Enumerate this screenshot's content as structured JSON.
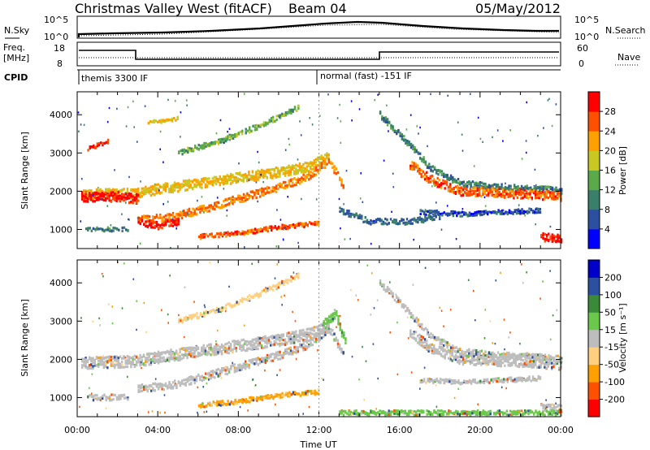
{
  "header": {
    "title": "Christmas Valley West (fitACF)",
    "beam": "Beam 04",
    "date": "05/May/2012"
  },
  "panels": {
    "nsky_label": "N.Sky",
    "nsky_ticks": [
      "10^5",
      "10^0"
    ],
    "nsearch_label": "N.Search",
    "freq_label_1": "Freq.",
    "freq_label_2": "[MHz]",
    "freq_ticks": [
      "18",
      "8"
    ],
    "nave_ticks": [
      "60",
      "0"
    ],
    "nave_label": "Nave",
    "cpid_label": "CPID",
    "cpid_modes": [
      "themis 3300 IF",
      "normal (fast) -151 IF"
    ]
  },
  "colors": {
    "power": [
      "#0000ff",
      "#2d4fa0",
      "#3a7f6a",
      "#5aaa4a",
      "#c8c820",
      "#ffa000",
      "#ff5000",
      "#ff0000"
    ],
    "velocity": [
      "#ff0000",
      "#ff5000",
      "#ffa000",
      "#ffd080",
      "#bdbdbd",
      "#6ac84a",
      "#3a8a3a",
      "#2d4fa0",
      "#0000c8"
    ],
    "ground_scatter": "#bdbdbd"
  },
  "chart_data": [
    {
      "type": "heatmap",
      "name": "power",
      "ylabel": "Slant Range [km]",
      "yticks": [
        "1000",
        "2000",
        "3000",
        "4000"
      ],
      "ylim": [
        500,
        4600
      ],
      "xlim_hours": [
        0,
        24
      ],
      "colorbar_label": "Power [dB]",
      "colorbar_ticks": [
        "4",
        "8",
        "12",
        "16",
        "20",
        "24",
        "28"
      ],
      "colorbar_range": [
        0,
        32
      ],
      "bands": [
        {
          "pts": [
            [
              0.2,
              1900
            ],
            [
              3.0,
              1950
            ],
            [
              4.0,
              2050
            ],
            [
              6.0,
              2200
            ],
            [
              8.0,
              2350
            ],
            [
              10.0,
              2500
            ],
            [
              11.5,
              2650
            ],
            [
              12.5,
              2900
            ]
          ],
          "width": 260,
          "power": 20
        },
        {
          "pts": [
            [
              0.2,
              1850
            ],
            [
              2.0,
              1850
            ],
            [
              3.0,
              1800
            ]
          ],
          "width": 250,
          "power": 30
        },
        {
          "pts": [
            [
              3.0,
              1250
            ],
            [
              4.5,
              1300
            ],
            [
              6.0,
              1500
            ],
            [
              8.0,
              1800
            ],
            [
              10.0,
              2100
            ],
            [
              11.5,
              2400
            ],
            [
              12.5,
              2800
            ],
            [
              13.2,
              2100
            ]
          ],
          "width": 200,
          "power": 24
        },
        {
          "pts": [
            [
              3.0,
              1200
            ],
            [
              4.0,
              1100
            ],
            [
              5.0,
              1200
            ]
          ],
          "width": 180,
          "power": 30
        },
        {
          "pts": [
            [
              5.0,
              3000
            ],
            [
              7.0,
              3300
            ],
            [
              9.0,
              3700
            ],
            [
              11.0,
              4200
            ]
          ],
          "width": 130,
          "power": 14
        },
        {
          "pts": [
            [
              0.5,
              3100
            ],
            [
              1.5,
              3300
            ]
          ],
          "width": 120,
          "power": 28
        },
        {
          "pts": [
            [
              3.5,
              3800
            ],
            [
              5.0,
              3900
            ]
          ],
          "width": 100,
          "power": 20
        },
        {
          "pts": [
            [
              6.0,
              800
            ],
            [
              8.0,
              900
            ],
            [
              10.0,
              1050
            ],
            [
              12.0,
              1150
            ]
          ],
          "width": 120,
          "power": 26
        },
        {
          "pts": [
            [
              0.4,
              1000
            ],
            [
              2.5,
              1000
            ]
          ],
          "width": 100,
          "power": 10
        },
        {
          "pts": [
            [
              15.0,
              4000
            ],
            [
              16.5,
              3200
            ],
            [
              17.5,
              2600
            ],
            [
              19.0,
              2200
            ],
            [
              21.0,
              2100
            ],
            [
              23.0,
              2050
            ],
            [
              24.0,
              2000
            ]
          ],
          "width": 160,
          "power": 10
        },
        {
          "pts": [
            [
              16.5,
              2700
            ],
            [
              17.5,
              2300
            ],
            [
              19.0,
              2000
            ],
            [
              21.0,
              1950
            ],
            [
              23.0,
              1900
            ],
            [
              24.0,
              1850
            ]
          ],
          "width": 230,
          "power": 26
        },
        {
          "pts": [
            [
              17.0,
              1450
            ],
            [
              19.0,
              1400
            ],
            [
              21.0,
              1450
            ],
            [
              23.0,
              1500
            ]
          ],
          "width": 120,
          "power": 6
        },
        {
          "pts": [
            [
              13.0,
              1500
            ],
            [
              14.5,
              1200
            ],
            [
              16.5,
              1200
            ],
            [
              18.0,
              1350
            ]
          ],
          "width": 150,
          "power": 8
        },
        {
          "pts": [
            [
              23.0,
              800
            ],
            [
              24.0,
              750
            ]
          ],
          "width": 200,
          "power": 30
        }
      ]
    },
    {
      "type": "heatmap",
      "name": "velocity",
      "ylabel": "Slant Range [km]",
      "yticks": [
        "1000",
        "2000",
        "3000",
        "4000"
      ],
      "ylim": [
        500,
        4600
      ],
      "xlim_hours": [
        0,
        24
      ],
      "xticks": [
        "00:00",
        "04:00",
        "08:00",
        "12:00",
        "16:00",
        "20:00",
        "00:00"
      ],
      "xlabel": "Time UT",
      "colorbar_label": "Velocity [m s⁻¹]",
      "colorbar_ticks": [
        "200",
        "100",
        "50",
        "15",
        "-15",
        "-50",
        "-100",
        "-200"
      ],
      "colorbar_range": [
        -250,
        250
      ],
      "bands": [
        {
          "pts": [
            [
              0.2,
              1900
            ],
            [
              3.0,
              1950
            ],
            [
              4.0,
              2050
            ],
            [
              6.0,
              2200
            ],
            [
              8.0,
              2350
            ],
            [
              10.0,
              2500
            ],
            [
              11.5,
              2650
            ],
            [
              12.5,
              2900
            ]
          ],
          "width": 300,
          "vel": 0
        },
        {
          "pts": [
            [
              3.0,
              1250
            ],
            [
              4.5,
              1300
            ],
            [
              6.0,
              1500
            ],
            [
              8.0,
              1800
            ],
            [
              10.0,
              2100
            ],
            [
              11.5,
              2400
            ],
            [
              12.5,
              2800
            ],
            [
              13.2,
              2100
            ]
          ],
          "width": 200,
          "vel": 0
        },
        {
          "pts": [
            [
              0.4,
              1000
            ],
            [
              2.5,
              1000
            ]
          ],
          "width": 150,
          "vel": 0
        },
        {
          "pts": [
            [
              6.0,
              800
            ],
            [
              8.0,
              900
            ],
            [
              10.0,
              1050
            ],
            [
              12.0,
              1150
            ]
          ],
          "width": 120,
          "vel": -60
        },
        {
          "pts": [
            [
              5.0,
              3000
            ],
            [
              7.0,
              3300
            ],
            [
              9.0,
              3700
            ],
            [
              11.0,
              4200
            ]
          ],
          "width": 130,
          "vel": -30
        },
        {
          "pts": [
            [
              12.2,
              2900
            ],
            [
              12.8,
              3200
            ],
            [
              13.3,
              2400
            ]
          ],
          "width": 250,
          "vel": 30
        },
        {
          "pts": [
            [
              15.0,
              4000
            ],
            [
              16.5,
              3200
            ],
            [
              17.5,
              2600
            ],
            [
              19.0,
              2200
            ],
            [
              21.0,
              2100
            ],
            [
              23.0,
              2050
            ],
            [
              24.0,
              2000
            ]
          ],
          "width": 160,
          "vel": 0
        },
        {
          "pts": [
            [
              16.5,
              2700
            ],
            [
              17.5,
              2300
            ],
            [
              19.0,
              2000
            ],
            [
              21.0,
              1950
            ],
            [
              23.0,
              1900
            ],
            [
              24.0,
              1850
            ]
          ],
          "width": 260,
          "vel": 0
        },
        {
          "pts": [
            [
              17.0,
              1450
            ],
            [
              19.0,
              1400
            ],
            [
              21.0,
              1450
            ],
            [
              23.0,
              1500
            ]
          ],
          "width": 120,
          "vel": 0
        },
        {
          "pts": [
            [
              23.0,
              750
            ],
            [
              24.0,
              700
            ]
          ],
          "width": 200,
          "vel": 0
        },
        {
          "pts": [
            [
              13.0,
              600
            ],
            [
              24.0,
              600
            ]
          ],
          "width": 120,
          "vel": 30
        }
      ]
    }
  ]
}
